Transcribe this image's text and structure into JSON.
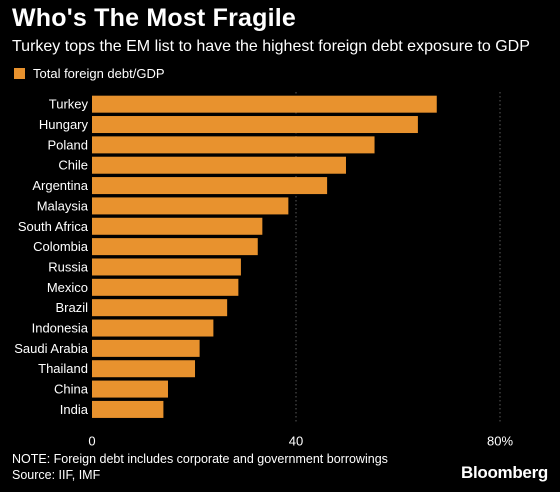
{
  "chart_data": {
    "type": "bar",
    "orientation": "horizontal",
    "title": "Who's The Most Fragile",
    "subtitle": "Turkey tops the EM list to have the highest foreign debt exposure to GDP",
    "categories": [
      "Turkey",
      "Hungary",
      "Poland",
      "Chile",
      "Argentina",
      "Malaysia",
      "South Africa",
      "Colombia",
      "Russia",
      "Mexico",
      "Brazil",
      "Indonesia",
      "Saudi Arabia",
      "Thailand",
      "China",
      "India"
    ],
    "series": [
      {
        "name": "Total foreign debt/GDP",
        "values": [
          67.6,
          63.9,
          55.4,
          49.8,
          46.1,
          38.5,
          33.4,
          32.5,
          29.2,
          28.7,
          26.5,
          23.8,
          21.1,
          20.2,
          14.9,
          14.0
        ]
      }
    ],
    "xlim": [
      0,
      80
    ],
    "xticks": [
      0,
      40,
      80
    ],
    "xtick_labels": [
      "0",
      "40",
      "80%"
    ],
    "grid": "vertical",
    "legend_position": "top-left",
    "colors": {
      "bar": "#E8922E",
      "background": "#000000",
      "grid": "#5a5a5a",
      "text": "#ffffff"
    }
  },
  "footer": {
    "note": "NOTE: Foreign debt includes corporate and government borrowings",
    "source": "Source: IIF, IMF",
    "brand": "Bloomberg"
  }
}
